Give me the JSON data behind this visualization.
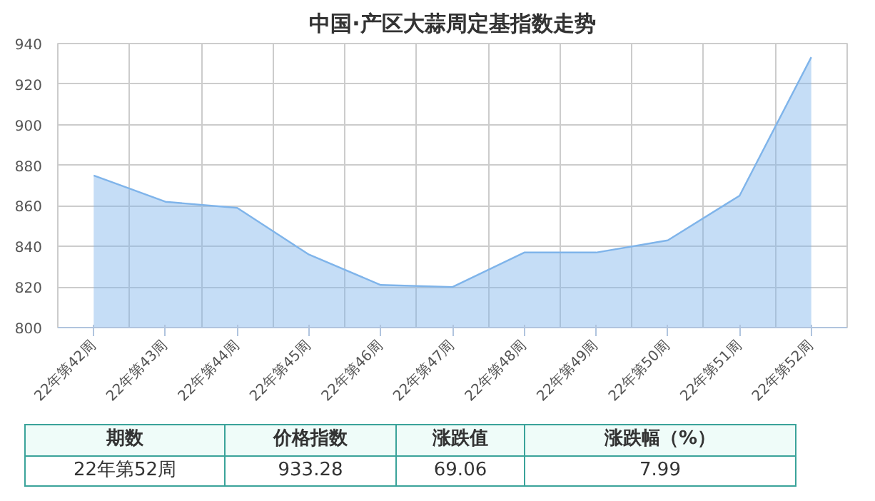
{
  "chart_data": {
    "type": "area",
    "title": "中国·产区大蒜周定基指数走势",
    "categories": [
      "22年第42周",
      "22年第43周",
      "22年第44周",
      "22年第45周",
      "22年第46周",
      "22年第47周",
      "22年第48周",
      "22年第49周",
      "22年第50周",
      "22年第51周",
      "22年第52周"
    ],
    "series": [
      {
        "color": "#7fb4ea",
        "values": [
          875,
          862,
          859,
          836,
          821,
          820,
          837,
          837,
          843,
          865,
          933.28
        ]
      }
    ],
    "ylim": [
      800,
      940
    ],
    "yticks": [
      800,
      820,
      840,
      860,
      880,
      900,
      920,
      940
    ],
    "grid": true,
    "annotations": [
      "期数",
      "价格指数",
      "涨跌值",
      "涨跌幅（%）",
      "22年第52周",
      "933.28",
      "69.06",
      "7.99"
    ]
  }
}
